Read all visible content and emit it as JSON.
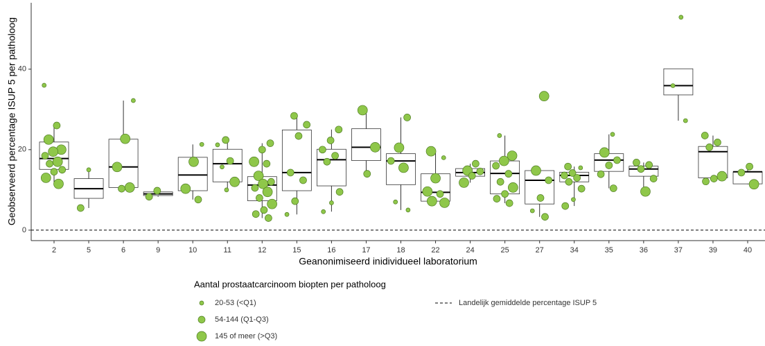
{
  "chart_data": {
    "type": "box",
    "x_label": "Geanonimiseerd inidividueel laboratorium",
    "y_label": "Geobserveerd percentage ISUP 5 per patholoog",
    "categories": [
      "2",
      "5",
      "6",
      "9",
      "10",
      "11",
      "12",
      "15",
      "16",
      "17",
      "18",
      "22",
      "24",
      "25",
      "27",
      "34",
      "35",
      "36",
      "37",
      "39",
      "40"
    ],
    "ylim": [
      -2.6,
      56.5
    ],
    "yticks": [
      0,
      20,
      40
    ],
    "boxes": [
      {
        "low": 11.5,
        "q1": 15.1,
        "median": 17.8,
        "q3": 21.9,
        "high": 26.0
      },
      {
        "low": 5.5,
        "q1": 7.9,
        "median": 10.3,
        "q3": 12.8,
        "high": 15.0
      },
      {
        "low": 10.3,
        "q1": 10.6,
        "median": 15.7,
        "q3": 22.6,
        "high": 32.2
      },
      {
        "low": 8.3,
        "q1": 8.6,
        "median": 9.0,
        "q3": 9.5,
        "high": 9.8
      },
      {
        "low": 7.6,
        "q1": 9.8,
        "median": 13.7,
        "q3": 18.1,
        "high": 21.3
      },
      {
        "low": 10.1,
        "q1": 12.0,
        "median": 16.5,
        "q3": 20.1,
        "high": 22.4
      },
      {
        "low": 3.0,
        "q1": 7.3,
        "median": 11.2,
        "q3": 13.3,
        "high": 21.6
      },
      {
        "low": 3.9,
        "q1": 9.8,
        "median": 14.3,
        "q3": 24.9,
        "high": 28.4
      },
      {
        "low": 4.6,
        "q1": 11.0,
        "median": 17.5,
        "q3": 20.1,
        "high": 25.0
      },
      {
        "low": 14.0,
        "q1": 17.3,
        "median": 20.6,
        "q3": 25.2,
        "high": 29.8
      },
      {
        "low": 5.0,
        "q1": 11.3,
        "median": 17.2,
        "q3": 19.0,
        "high": 28.0
      },
      {
        "low": 6.7,
        "q1": 7.2,
        "median": 9.4,
        "q3": 14.0,
        "high": 19.6
      },
      {
        "low": 11.8,
        "q1": 13.4,
        "median": 14.3,
        "q3": 15.3,
        "high": 16.5
      },
      {
        "low": 6.7,
        "q1": 9.0,
        "median": 14.1,
        "q3": 17.2,
        "high": 23.5
      },
      {
        "low": 3.3,
        "q1": 6.5,
        "median": 12.4,
        "q3": 14.8,
        "high": 14.9
      },
      {
        "low": 6.0,
        "q1": 12.0,
        "median": 13.6,
        "q3": 14.4,
        "high": 15.8
      },
      {
        "low": 10.4,
        "q1": 14.6,
        "median": 17.4,
        "q3": 19.0,
        "high": 23.8
      },
      {
        "low": 9.6,
        "q1": 13.4,
        "median": 15.2,
        "q3": 15.9,
        "high": 16.8
      },
      {
        "low": 27.2,
        "q1": 33.6,
        "median": 35.9,
        "q3": 40.1,
        "high": 40.1
      },
      {
        "low": 12.1,
        "q1": 13.0,
        "median": 19.5,
        "q3": 20.8,
        "high": 23.5
      },
      {
        "low": 11.4,
        "q1": 11.5,
        "median": 14.5,
        "q3": 14.5,
        "high": 15.8
      }
    ],
    "points": [
      {
        "values": [
          36.0,
          26.0,
          22.5,
          20.0,
          19.5,
          18.5,
          17.0,
          16.5,
          15.0,
          14.5,
          13.0,
          11.5
        ],
        "sizes": [
          0,
          1,
          2,
          2,
          2,
          1,
          2,
          1,
          1,
          1,
          2,
          2
        ]
      },
      {
        "values": [
          15.0,
          5.5
        ],
        "sizes": [
          0,
          1
        ]
      },
      {
        "values": [
          32.2,
          22.7,
          15.7,
          10.6,
          10.3
        ],
        "sizes": [
          0,
          2,
          2,
          2,
          1
        ]
      },
      {
        "values": [
          9.8,
          8.3
        ],
        "sizes": [
          1,
          1
        ]
      },
      {
        "values": [
          21.3,
          17.0,
          10.3,
          7.6
        ],
        "sizes": [
          0,
          2,
          2,
          1
        ]
      },
      {
        "values": [
          22.4,
          21.2,
          17.2,
          15.7,
          12.0,
          10.0
        ],
        "sizes": [
          1,
          0,
          1,
          0,
          2,
          0
        ]
      },
      {
        "values": [
          21.6,
          20.0,
          17.0,
          16.5,
          13.5,
          12.0,
          11.5,
          10.5,
          9.5,
          8.0,
          6.5,
          5.0,
          4.0,
          3.0
        ],
        "sizes": [
          1,
          1,
          2,
          1,
          2,
          1,
          2,
          1,
          2,
          1,
          2,
          1,
          1,
          1
        ]
      },
      {
        "values": [
          28.4,
          26.2,
          23.4,
          14.3,
          12.4,
          7.2,
          3.9
        ],
        "sizes": [
          1,
          1,
          1,
          1,
          1,
          1,
          0
        ]
      },
      {
        "values": [
          25.0,
          22.3,
          20.0,
          18.5,
          17.0,
          9.5,
          6.8,
          4.6
        ],
        "sizes": [
          1,
          1,
          1,
          1,
          1,
          1,
          0,
          0
        ]
      },
      {
        "values": [
          29.8,
          20.6,
          14.0
        ],
        "sizes": [
          2,
          2,
          1
        ]
      },
      {
        "values": [
          28.0,
          20.5,
          17.2,
          15.5,
          7.0,
          5.0
        ],
        "sizes": [
          1,
          2,
          1,
          2,
          0,
          0
        ]
      },
      {
        "values": [
          19.6,
          18.0,
          12.9,
          9.6,
          9.0,
          7.2,
          6.8
        ],
        "sizes": [
          2,
          0,
          2,
          2,
          1,
          2,
          2
        ]
      },
      {
        "values": [
          16.5,
          14.8,
          14.6,
          13.5,
          11.8
        ],
        "sizes": [
          1,
          2,
          1,
          1,
          2
        ]
      },
      {
        "values": [
          23.5,
          18.5,
          17.2,
          16.0,
          14.0,
          12.0,
          10.6,
          9.0,
          7.8,
          6.7
        ],
        "sizes": [
          0,
          2,
          2,
          1,
          1,
          1,
          2,
          1,
          1,
          1
        ]
      },
      {
        "values": [
          33.3,
          14.8,
          12.4,
          8.0,
          4.8,
          3.3
        ],
        "sizes": [
          2,
          2,
          1,
          1,
          0,
          1
        ]
      },
      {
        "values": [
          15.8,
          15.5,
          14.2,
          13.6,
          13.0,
          12.0,
          10.3,
          7.6,
          6.0
        ],
        "sizes": [
          1,
          0,
          1,
          1,
          1,
          1,
          1,
          0,
          1
        ]
      },
      {
        "values": [
          23.8,
          19.3,
          17.4,
          16.1,
          13.9,
          10.4
        ],
        "sizes": [
          0,
          2,
          1,
          1,
          1,
          1
        ]
      },
      {
        "values": [
          16.8,
          16.2,
          15.2,
          12.8,
          9.6
        ],
        "sizes": [
          1,
          1,
          1,
          1,
          2
        ]
      },
      {
        "values": [
          52.9,
          35.9,
          27.2
        ],
        "sizes": [
          0,
          0,
          0
        ]
      },
      {
        "values": [
          23.5,
          21.8,
          20.6,
          13.4,
          12.8,
          12.1
        ],
        "sizes": [
          1,
          1,
          1,
          2,
          1,
          1
        ]
      },
      {
        "values": [
          15.8,
          14.3,
          11.4
        ],
        "sizes": [
          1,
          1,
          2
        ]
      }
    ],
    "point_color": "#8fc74a",
    "reference_line": {
      "value": 0,
      "label": "Landelijk gemiddelde percentage ISUP 5"
    },
    "legend_title": "Aantal prostaatcarcinoom biopten per patholoog",
    "legend_entries": [
      "20-53 (<Q1)",
      "54-144 (Q1-Q3)",
      "145 of meer (>Q3)"
    ]
  }
}
